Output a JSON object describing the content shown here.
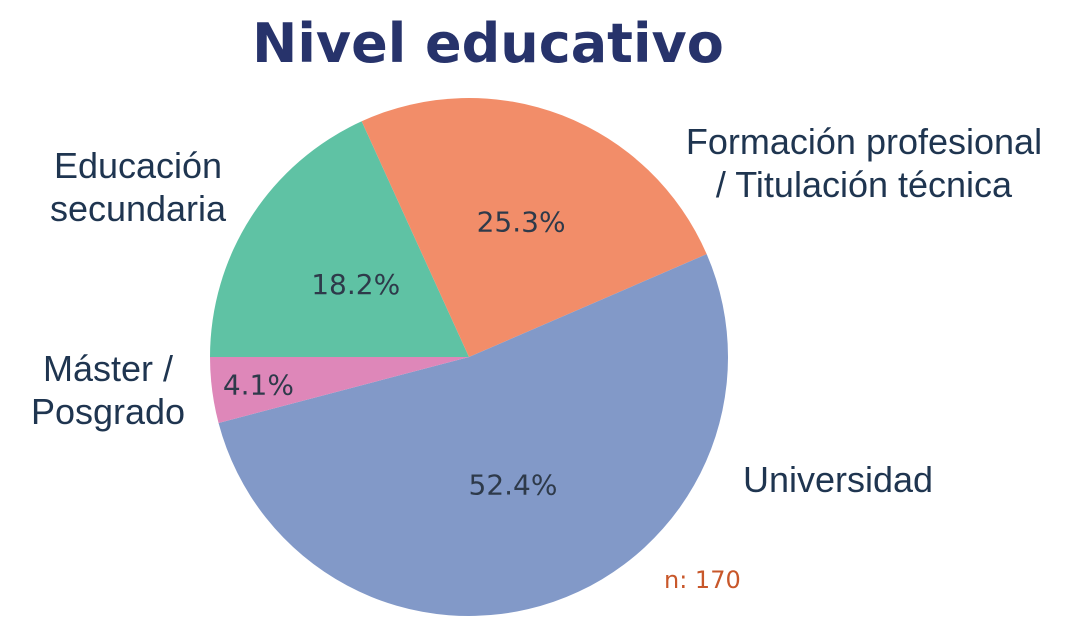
{
  "chart_data": {
    "type": "pie",
    "title": "Nivel educativo",
    "note": "n: 170",
    "start_angle_deg": 180,
    "direction": "clockwise",
    "slices": [
      {
        "label": [
          "Educación",
          "secundaria"
        ],
        "value": 18.2,
        "display": "18.2%",
        "color": "#5fc2a4"
      },
      {
        "label": [
          "Formación profesional",
          "/ Titulación técnica"
        ],
        "value": 25.3,
        "display": "25.3%",
        "color": "#f28d69"
      },
      {
        "label": [
          "Universidad"
        ],
        "value": 52.4,
        "display": "52.4%",
        "color": "#8299c8"
      },
      {
        "label": [
          "Máster /",
          "Posgrado"
        ],
        "value": 4.1,
        "display": "4.1%",
        "color": "#de87b9"
      }
    ],
    "colors": {
      "title": "#27336b",
      "category_label": "#1f3550",
      "percent_label": "#2e3a4a",
      "note": "#c8572a"
    }
  }
}
